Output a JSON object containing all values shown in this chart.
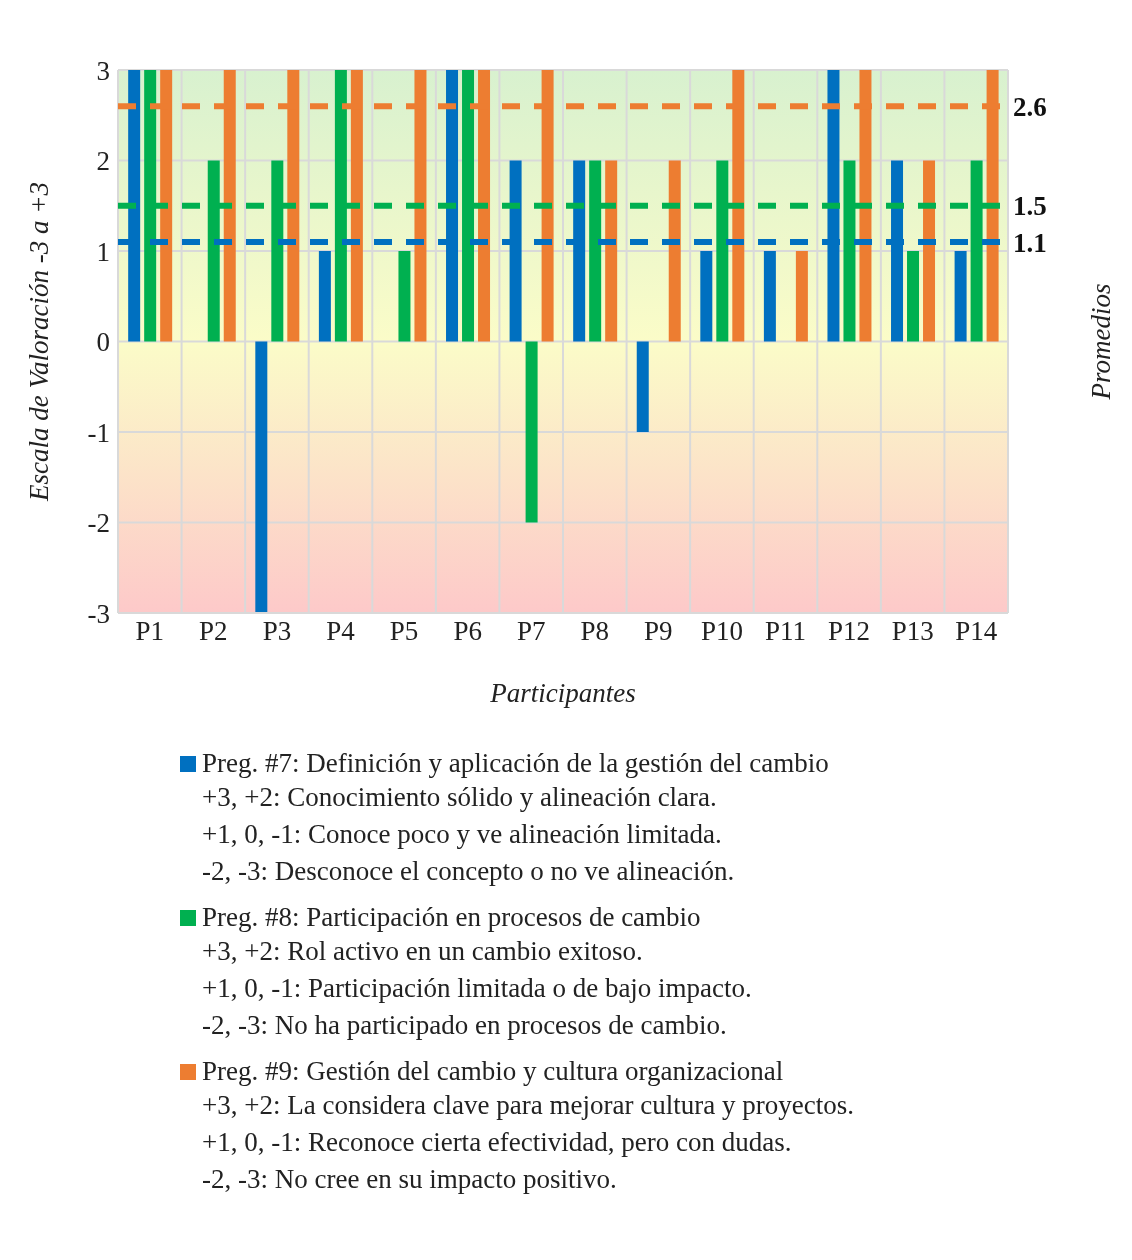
{
  "chart_data": {
    "type": "bar",
    "xlabel": "Participantes",
    "ylabel": "Escala de Valoración -3 a +3",
    "y2label": "Promedios",
    "categories": [
      "P1",
      "P2",
      "P3",
      "P4",
      "P5",
      "P6",
      "P7",
      "P8",
      "P9",
      "P10",
      "P11",
      "P12",
      "P13",
      "P14"
    ],
    "series": [
      {
        "name": "Preg. #7: Definición y aplicación de la gestión del cambio",
        "color": "#0070c0",
        "values": [
          3,
          0,
          -3,
          1,
          0,
          3,
          2,
          2,
          -1,
          1,
          1,
          3,
          2,
          1
        ]
      },
      {
        "name": "Preg. #8: Participación en procesos de cambio",
        "color": "#00b050",
        "values": [
          3,
          2,
          2,
          3,
          1,
          3,
          -2,
          2,
          0,
          2,
          0,
          2,
          1,
          2
        ]
      },
      {
        "name": "Preg. #9: Gestión del cambio y cultura organizacional",
        "color": "#ed7d31",
        "values": [
          3,
          3,
          3,
          3,
          3,
          3,
          3,
          2,
          2,
          3,
          1,
          3,
          2,
          3
        ]
      }
    ],
    "ylim": [
      -3,
      3
    ],
    "yticks": [
      -3,
      -2,
      -1,
      0,
      1,
      2,
      3
    ],
    "grid": true,
    "legend": "bottom",
    "ref_lines": [
      {
        "axis": "y",
        "value": 2.6,
        "label": "2.6",
        "color": "#ed7d31",
        "line_style": "dashed"
      },
      {
        "axis": "y",
        "value": 1.5,
        "label": "1.5",
        "color": "#00b050",
        "line_style": "dashed"
      },
      {
        "axis": "y",
        "value": 1.1,
        "label": "1.1",
        "color": "#0070c0",
        "line_style": "dashed"
      }
    ],
    "annotations": [
      "+3, +2: Conocimiento sólido y alineación clara.",
      "+1, 0, -1: Conoce poco y ve alineación limitada.",
      "-2, -3: Desconoce el concepto o no ve alineación.",
      "+3, +2: Rol activo en un cambio exitoso.",
      "+1, 0, -1: Participación limitada o de bajo impacto.",
      "-2, -3: No ha participado en procesos de cambio.",
      "+3, +2: La considera clave para mejorar cultura y proyectos.",
      "+1, 0, -1: Reconoce cierta efectividad, pero con dudas.",
      "-2, -3: No cree en su impacto positivo."
    ]
  }
}
